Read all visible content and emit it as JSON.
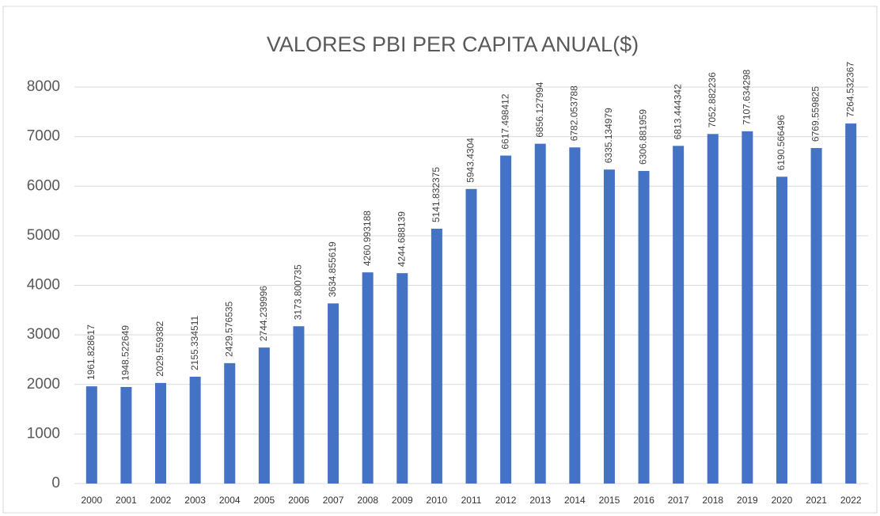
{
  "chart_data": {
    "type": "bar",
    "title": "VALORES PBI PER CAPITA ANUAL($)",
    "categories": [
      "2000",
      "2001",
      "2002",
      "2003",
      "2004",
      "2005",
      "2006",
      "2007",
      "2008",
      "2009",
      "2010",
      "2011",
      "2012",
      "2013",
      "2014",
      "2015",
      "2016",
      "2017",
      "2018",
      "2019",
      "2020",
      "2021",
      "2022"
    ],
    "values": [
      1961.828617,
      1948.522649,
      2029.559382,
      2155.334511,
      2429.576535,
      2744.239996,
      3173.800735,
      3634.855619,
      4260.993188,
      4244.688139,
      5141.832375,
      5943.4304,
      6617.498412,
      6856.127994,
      6782.053788,
      6335.134979,
      6306.881959,
      6813.444342,
      7052.882236,
      7107.634298,
      6190.566496,
      6769.559825,
      7264.532367
    ],
    "color": "#4472c4",
    "ylim": [
      0,
      8000
    ],
    "yticks": [
      0,
      1000,
      2000,
      3000,
      4000,
      5000,
      6000,
      7000,
      8000
    ],
    "grid": true
  }
}
